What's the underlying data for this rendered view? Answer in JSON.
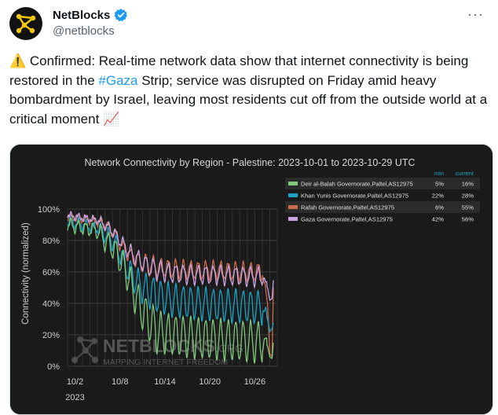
{
  "tweet": {
    "account_name": "NetBlocks",
    "handle": "@netblocks",
    "more_label": "···",
    "warning_emoji": "⚠️",
    "text_before_hashtag": " Confirmed: Real-time network data show that internet connectivity is being restored in the ",
    "hashtag": "#Gaza",
    "text_after_hashtag": " Strip; service was disrupted on Friday amid heavy bombardment by Israel, leaving most residents cut off from the outside world at a critical moment ",
    "trend_emoji": "📈"
  },
  "colors": {
    "deir": "#7ec87b",
    "khan": "#1ba3c6",
    "rafah": "#cd6b4f",
    "gaza": "#c9a2e0",
    "verified": "#1d9bf0",
    "hashtag": "#1d9bf0"
  },
  "watermark": {
    "brand": "NETBLOCKS",
    "suffix": ".ORG",
    "tagline": "MAPPING INTERNET FREEDOM"
  },
  "chart_data": {
    "type": "line",
    "title": "Network Connectivity by Region - Palestine: 2023-10-01 to 2023-10-29 UTC",
    "ylabel": "Connectivity (normalized)",
    "xlabel": "",
    "x_tick_labels": [
      "10/2",
      "10/8",
      "10/14",
      "10/20",
      "10/26"
    ],
    "x_year_label": "2023",
    "y_tick_labels": [
      "0%",
      "20%",
      "40%",
      "60%",
      "80%",
      "100%"
    ],
    "ylim": [
      0,
      100
    ],
    "grid": true,
    "legend_position": "top-right",
    "legend_headers": {
      "min": "min",
      "current": "current"
    },
    "series": [
      {
        "name": "Deir al-Balah Governorate,Paltel,AS12975",
        "min": "5%",
        "current": "16%",
        "anchors": [
          [
            0,
            90
          ],
          [
            4,
            86
          ],
          [
            5,
            80
          ],
          [
            6,
            76
          ],
          [
            7,
            68
          ],
          [
            8,
            58
          ],
          [
            9,
            45
          ],
          [
            10,
            35
          ],
          [
            11,
            28
          ],
          [
            12,
            22
          ],
          [
            14,
            20
          ],
          [
            17,
            18
          ],
          [
            20,
            17
          ],
          [
            24,
            16
          ],
          [
            26,
            15
          ],
          [
            26.7,
            13
          ],
          [
            27,
            6
          ],
          [
            27.3,
            5
          ],
          [
            27.5,
            16
          ]
        ]
      },
      {
        "name": "Khan Yunis Governorate,Paltel,AS12975",
        "min": "22%",
        "current": "28%",
        "anchors": [
          [
            0,
            92
          ],
          [
            4,
            88
          ],
          [
            5,
            84
          ],
          [
            6,
            80
          ],
          [
            7,
            72
          ],
          [
            8,
            62
          ],
          [
            9,
            55
          ],
          [
            10,
            50
          ],
          [
            11,
            47
          ],
          [
            12,
            45
          ],
          [
            14,
            42
          ],
          [
            17,
            40
          ],
          [
            20,
            39
          ],
          [
            24,
            38
          ],
          [
            26,
            37
          ],
          [
            26.7,
            30
          ],
          [
            27,
            22
          ],
          [
            27.3,
            24
          ],
          [
            27.5,
            28
          ]
        ]
      },
      {
        "name": "Rafah Governorate,Paltel,AS12975",
        "min": "6%",
        "current": "55%",
        "anchors": [
          [
            0,
            95
          ],
          [
            4,
            92
          ],
          [
            5,
            90
          ],
          [
            6,
            86
          ],
          [
            7,
            78
          ],
          [
            8,
            72
          ],
          [
            9,
            68
          ],
          [
            10,
            66
          ],
          [
            11,
            64
          ],
          [
            12,
            63
          ],
          [
            14,
            62
          ],
          [
            17,
            61
          ],
          [
            20,
            61
          ],
          [
            24,
            60
          ],
          [
            26,
            60
          ],
          [
            26.7,
            40
          ],
          [
            27,
            8
          ],
          [
            27.3,
            6
          ],
          [
            27.5,
            55
          ]
        ]
      },
      {
        "name": "Gaza Governorate,Paltel,AS12975",
        "min": "42%",
        "current": "56%",
        "anchors": [
          [
            0,
            96
          ],
          [
            4,
            93
          ],
          [
            5,
            90
          ],
          [
            6,
            86
          ],
          [
            7,
            80
          ],
          [
            8,
            74
          ],
          [
            9,
            70
          ],
          [
            10,
            66
          ],
          [
            11,
            63
          ],
          [
            12,
            61
          ],
          [
            14,
            59
          ],
          [
            17,
            58
          ],
          [
            20,
            58
          ],
          [
            24,
            57
          ],
          [
            26,
            57
          ],
          [
            26.7,
            50
          ],
          [
            27,
            42
          ],
          [
            27.3,
            43
          ],
          [
            27.5,
            56
          ]
        ]
      }
    ]
  }
}
